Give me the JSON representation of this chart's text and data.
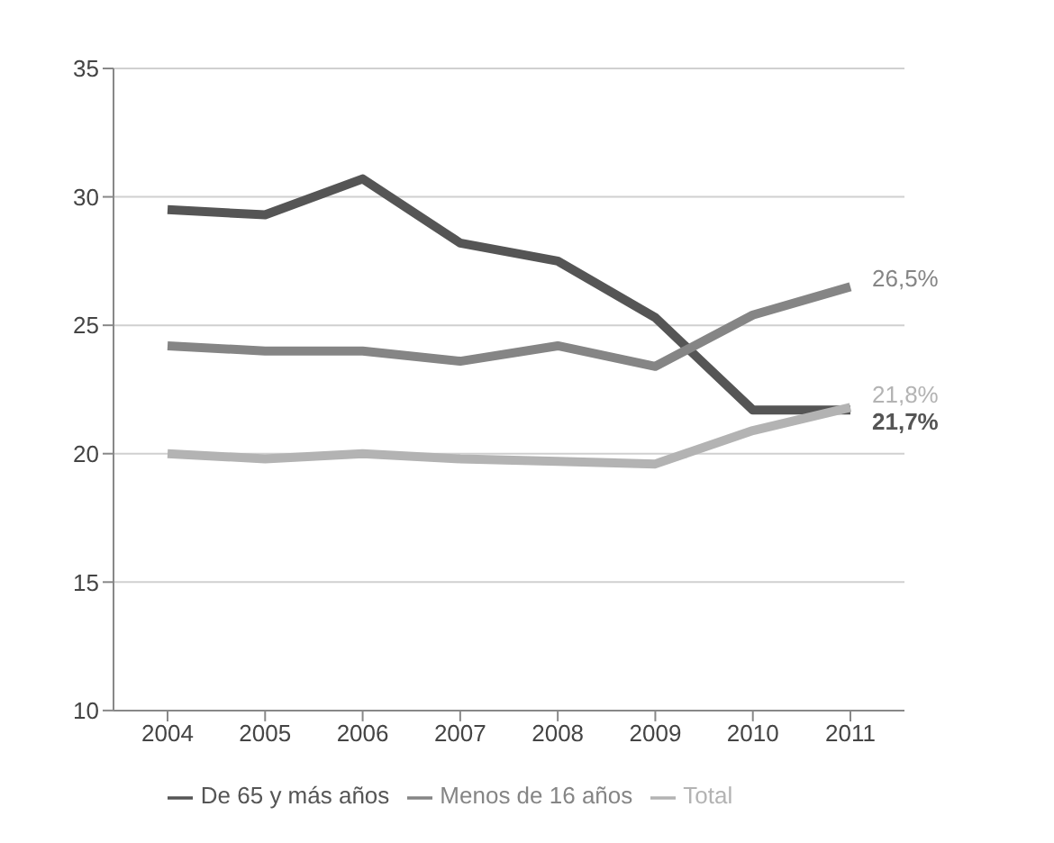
{
  "chart_data": {
    "type": "line",
    "categories": [
      "2004",
      "2005",
      "2006",
      "2007",
      "2008",
      "2009",
      "2010",
      "2011"
    ],
    "series": [
      {
        "name": "De 65 y más años",
        "color": "#555555",
        "values": [
          29.5,
          29.3,
          30.7,
          28.2,
          27.5,
          25.3,
          21.7,
          21.7
        ]
      },
      {
        "name": "Menos de 16 años",
        "color": "#858585",
        "values": [
          24.2,
          24.0,
          24.0,
          23.6,
          24.2,
          23.4,
          25.4,
          26.5
        ]
      },
      {
        "name": "Total",
        "color": "#b3b3b3",
        "values": [
          20.0,
          19.8,
          20.0,
          19.8,
          19.7,
          19.6,
          20.9,
          21.8
        ]
      }
    ],
    "ylim": [
      10,
      35
    ],
    "yticks": [
      10,
      15,
      20,
      25,
      30,
      35
    ],
    "grid": "y",
    "legend": "bottom",
    "marker": "none",
    "line_style": "solid",
    "annotations": [
      {
        "text": "26,5%",
        "x": "2011",
        "y": 26.5
      },
      {
        "text": "21,8%",
        "x": "2011",
        "y": 21.8
      },
      {
        "text": "21,7%",
        "x": "2011",
        "y": 21.7
      }
    ]
  }
}
